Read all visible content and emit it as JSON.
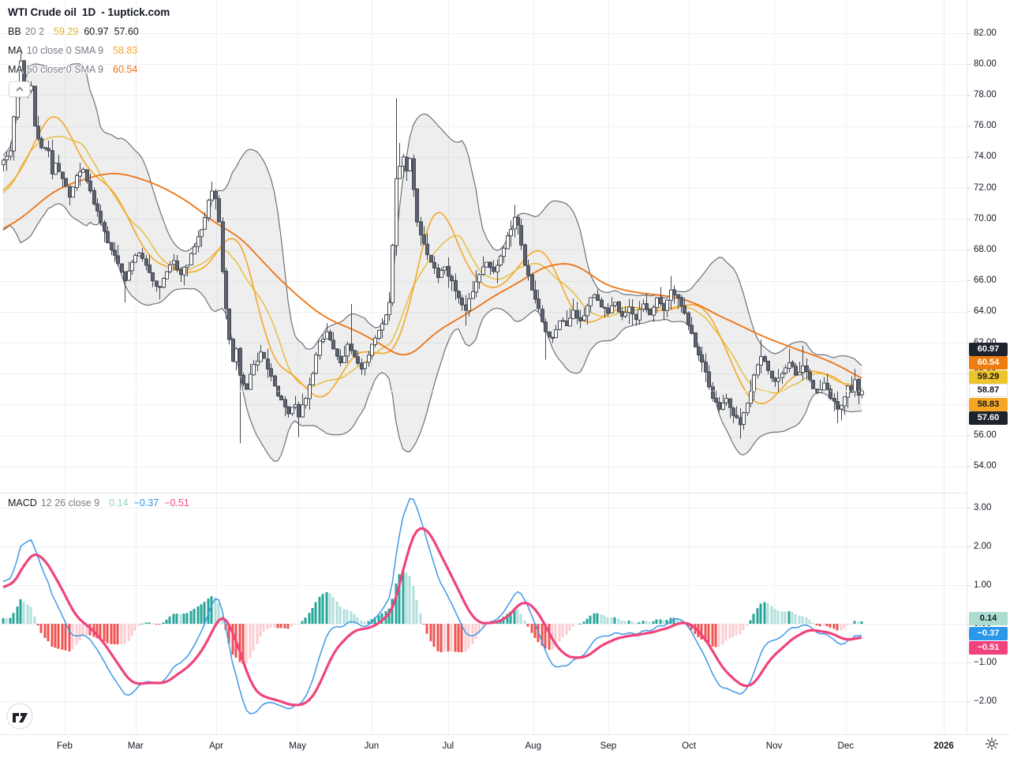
{
  "header": {
    "title_symbol": "WTI Crude oil",
    "title_interval": "1D",
    "title_source": "- 1uptick.com"
  },
  "legend": {
    "bb": {
      "name": "BB",
      "params": "20 2",
      "values": [
        {
          "text": "59.29",
          "color": "#dfb22e"
        },
        {
          "text": "60.97",
          "color": "#131722"
        },
        {
          "text": "57.60",
          "color": "#131722"
        }
      ]
    },
    "ma10": {
      "name": "MA",
      "params": "10 close 0 SMA 9",
      "values": [
        {
          "text": "58.83",
          "color": "#f5a623"
        }
      ]
    },
    "ma50": {
      "name": "MA",
      "params": "50 close 0 SMA 9",
      "values": [
        {
          "text": "60.54",
          "color": "#ef7012"
        }
      ]
    },
    "macd": {
      "name": "MACD",
      "params": "12 26 close 9",
      "values": [
        {
          "text": "0.14",
          "color": "#93d2c5"
        },
        {
          "text": "−0.37",
          "color": "#2a95e8"
        },
        {
          "text": "−0.51",
          "color": "#f5487d"
        }
      ]
    }
  },
  "price_axis": {
    "ticks": [
      {
        "label": "82.00",
        "value": 82
      },
      {
        "label": "80.00",
        "value": 80
      },
      {
        "label": "78.00",
        "value": 78
      },
      {
        "label": "76.00",
        "value": 76
      },
      {
        "label": "74.00",
        "value": 74
      },
      {
        "label": "72.00",
        "value": 72
      },
      {
        "label": "70.00",
        "value": 70
      },
      {
        "label": "68.00",
        "value": 68
      },
      {
        "label": "66.00",
        "value": 66
      },
      {
        "label": "64.00",
        "value": 64
      },
      {
        "label": "62.00",
        "value": 62
      },
      {
        "label": "60.00",
        "value": 60
      },
      {
        "label": "58.00",
        "value": 58
      },
      {
        "label": "56.00",
        "value": 56
      },
      {
        "label": "54.00",
        "value": 54
      }
    ],
    "badges": [
      {
        "label": "60.97",
        "value": 60.97,
        "bg": "#1e222d",
        "fg": "#ffffff"
      },
      {
        "label": "60.54",
        "value": 60.54,
        "bg": "#ef7c0e",
        "fg": "#ffffff"
      },
      {
        "label": "59.29",
        "value": 59.29,
        "bg": "#edc32a",
        "fg": "#131722"
      },
      {
        "label": "58.87",
        "value": 58.87,
        "bg": "#ffffff",
        "fg": "#131722",
        "border": "#e0e3eb"
      },
      {
        "label": "58.83",
        "value": 58.83,
        "bg": "#f5a623",
        "fg": "#131722"
      },
      {
        "label": "57.60",
        "value": 57.6,
        "bg": "#1e222d",
        "fg": "#ffffff"
      }
    ]
  },
  "macd_axis": {
    "ticks": [
      {
        "label": "3.00",
        "value": 3
      },
      {
        "label": "2.00",
        "value": 2
      },
      {
        "label": "1.00",
        "value": 1
      },
      {
        "label": "0.00",
        "value": 0
      },
      {
        "label": "−1.00",
        "value": -1
      },
      {
        "label": "−2.00",
        "value": -2
      }
    ],
    "badges": [
      {
        "label": "0.14",
        "value": 0.14,
        "bg": "#aadcd0",
        "fg": "#131722"
      },
      {
        "label": "−0.37",
        "value": -0.37,
        "bg": "#2b97ea",
        "fg": "#ffffff"
      },
      {
        "label": "−0.51",
        "value": -0.51,
        "bg": "#f0427c",
        "fg": "#ffffff"
      }
    ]
  },
  "chart_data": {
    "type": "candlestick_with_indicators",
    "symbol": "WTI Crude oil",
    "interval": "1D",
    "source": "1uptick.com",
    "last_price": 58.87,
    "price_scale": {
      "visible_min": 52.5,
      "visible_max": 82.2,
      "gridline_step": 2
    },
    "macd_scale": {
      "visible_min": -2.9,
      "visible_max": 3.3,
      "gridline_step": 1
    },
    "indicators": [
      {
        "type": "BollingerBands",
        "length": 20,
        "mult": 2,
        "last_basis": 59.29,
        "last_upper": 60.97,
        "last_lower": 57.6
      },
      {
        "type": "MA",
        "length": 10,
        "source": "close",
        "offset": 0,
        "smoothing": "SMA 9",
        "last": 58.83
      },
      {
        "type": "MA",
        "length": 50,
        "source": "close",
        "offset": 0,
        "smoothing": "SMA 9",
        "last": 60.54
      },
      {
        "type": "MACD",
        "fast": 12,
        "slow": 26,
        "source": "close",
        "signal": 9,
        "last_hist": 0.14,
        "last_macd": -0.37,
        "last_signal": -0.51
      }
    ],
    "months": [
      {
        "label": "Feb",
        "day": 17.7
      },
      {
        "label": "Mar",
        "day": 38.1
      },
      {
        "label": "Apr",
        "day": 61.3
      },
      {
        "label": "May",
        "day": 84.7
      },
      {
        "label": "Jun",
        "day": 106.0
      },
      {
        "label": "Jul",
        "day": 128.0
      },
      {
        "label": "Aug",
        "day": 152.5
      },
      {
        "label": "Sep",
        "day": 174.1
      },
      {
        "label": "Oct",
        "day": 197.3
      },
      {
        "label": "Nov",
        "day": 221.8
      },
      {
        "label": "Dec",
        "day": 242.4
      },
      {
        "label": "2026",
        "day": 270.6,
        "year": true
      }
    ],
    "days_visible": 248,
    "seed": 11,
    "close_anchors": [
      [
        -60,
        66.5
      ],
      [
        -45,
        67.8
      ],
      [
        -30,
        69.0
      ],
      [
        -18,
        70.0
      ],
      [
        -10,
        71.5
      ],
      [
        -5,
        72.5
      ],
      [
        0,
        73.8
      ],
      [
        2,
        74.4
      ],
      [
        3,
        76.6
      ],
      [
        5,
        80.2
      ],
      [
        6,
        78.0
      ],
      [
        8,
        78.6
      ],
      [
        9,
        76.0
      ],
      [
        11,
        74.6
      ],
      [
        13,
        74.4
      ],
      [
        14,
        72.9
      ],
      [
        15,
        73.6
      ],
      [
        17,
        72.6
      ],
      [
        19,
        71.4
      ],
      [
        21,
        72.8
      ],
      [
        23,
        73.2
      ],
      [
        25,
        71.8
      ],
      [
        27,
        70.5
      ],
      [
        29,
        69.2
      ],
      [
        31,
        68.0
      ],
      [
        33,
        67.1
      ],
      [
        35,
        66.0
      ],
      [
        37,
        67.2
      ],
      [
        39,
        67.8
      ],
      [
        41,
        67.0
      ],
      [
        43,
        66.0
      ],
      [
        45,
        65.6
      ],
      [
        47,
        66.6
      ],
      [
        49,
        67.3
      ],
      [
        51,
        66.4
      ],
      [
        53,
        67.0
      ],
      [
        55,
        68.2
      ],
      [
        57,
        69.3
      ],
      [
        59,
        71.2
      ],
      [
        60,
        71.8
      ],
      [
        61,
        71.3
      ],
      [
        62,
        69.8
      ],
      [
        63,
        66.6
      ],
      [
        64,
        64.2
      ],
      [
        65,
        62.2
      ],
      [
        66,
        60.8
      ],
      [
        67,
        61.6
      ],
      [
        68,
        59.9
      ],
      [
        70,
        59.0
      ],
      [
        72,
        60.6
      ],
      [
        74,
        61.4
      ],
      [
        76,
        60.3
      ],
      [
        78,
        59.2
      ],
      [
        80,
        58.3
      ],
      [
        82,
        57.4
      ],
      [
        84,
        58.0
      ],
      [
        85,
        57.2
      ],
      [
        87,
        58.4
      ],
      [
        89,
        60.0
      ],
      [
        91,
        62.1
      ],
      [
        93,
        62.7
      ],
      [
        95,
        61.6
      ],
      [
        97,
        60.7
      ],
      [
        99,
        61.9
      ],
      [
        101,
        61.1
      ],
      [
        103,
        60.3
      ],
      [
        105,
        61.2
      ],
      [
        106,
        61.9
      ],
      [
        108,
        62.8
      ],
      [
        110,
        63.8
      ],
      [
        111,
        64.6
      ],
      [
        112,
        68.3
      ],
      [
        113,
        72.6
      ],
      [
        114,
        73.4
      ],
      [
        115,
        74.0
      ],
      [
        116,
        73.1
      ],
      [
        117,
        73.9
      ],
      [
        118,
        71.9
      ],
      [
        119,
        69.8
      ],
      [
        121,
        68.4
      ],
      [
        123,
        67.2
      ],
      [
        125,
        66.2
      ],
      [
        127,
        66.9
      ],
      [
        129,
        66.0
      ],
      [
        131,
        64.9
      ],
      [
        133,
        64.1
      ],
      [
        135,
        65.3
      ],
      [
        137,
        66.4
      ],
      [
        139,
        67.2
      ],
      [
        141,
        66.6
      ],
      [
        143,
        67.6
      ],
      [
        145,
        68.9
      ],
      [
        147,
        70.1
      ],
      [
        148,
        69.6
      ],
      [
        149,
        68.3
      ],
      [
        150,
        67.0
      ],
      [
        152,
        65.4
      ],
      [
        154,
        64.2
      ],
      [
        156,
        62.7
      ],
      [
        158,
        62.3
      ],
      [
        160,
        63.4
      ],
      [
        162,
        63.1
      ],
      [
        164,
        64.1
      ],
      [
        166,
        63.4
      ],
      [
        168,
        64.4
      ],
      [
        170,
        65.1
      ],
      [
        172,
        64.3
      ],
      [
        174,
        63.9
      ],
      [
        176,
        64.6
      ],
      [
        178,
        63.7
      ],
      [
        180,
        64.3
      ],
      [
        182,
        63.5
      ],
      [
        184,
        64.5
      ],
      [
        186,
        63.8
      ],
      [
        188,
        64.9
      ],
      [
        190,
        64.1
      ],
      [
        192,
        65.4
      ],
      [
        194,
        64.9
      ],
      [
        196,
        63.9
      ],
      [
        198,
        62.6
      ],
      [
        200,
        61.2
      ],
      [
        202,
        60.1
      ],
      [
        204,
        58.4
      ],
      [
        206,
        57.7
      ],
      [
        208,
        58.4
      ],
      [
        210,
        57.3
      ],
      [
        212,
        56.7
      ],
      [
        214,
        58.1
      ],
      [
        216,
        59.9
      ],
      [
        218,
        61.1
      ],
      [
        220,
        60.2
      ],
      [
        222,
        59.5
      ],
      [
        224,
        60.0
      ],
      [
        226,
        60.7
      ],
      [
        228,
        59.9
      ],
      [
        230,
        60.5
      ],
      [
        232,
        59.6
      ],
      [
        234,
        58.8
      ],
      [
        236,
        59.4
      ],
      [
        238,
        58.4
      ],
      [
        240,
        57.7
      ],
      [
        242,
        58.5
      ],
      [
        243,
        59.2
      ],
      [
        244,
        58.8
      ],
      [
        245,
        59.6
      ],
      [
        246,
        58.6
      ],
      [
        247,
        58.87
      ]
    ],
    "wick_overrides": {
      "5": {
        "high": 80.9
      },
      "35": {
        "low": 64.6
      },
      "45": {
        "low": 64.8
      },
      "60": {
        "high": 72.4
      },
      "68": {
        "low": 55.5
      },
      "85": {
        "low": 55.9
      },
      "100": {
        "high": 64.5
      },
      "113": {
        "high": 77.8
      },
      "114": {
        "high": 74.9
      },
      "133": {
        "low": 63.1
      },
      "147": {
        "high": 70.9
      },
      "156": {
        "low": 60.9
      },
      "192": {
        "high": 66.3
      },
      "212": {
        "low": 55.8
      },
      "218": {
        "high": 62.2
      },
      "226": {
        "high": 61.6
      },
      "230": {
        "high": 61.8
      },
      "240": {
        "low": 56.8
      },
      "245": {
        "high": 60.3
      }
    },
    "style": {
      "candle_up_fill": "#ffffff",
      "candle_down_fill": "#5d6370",
      "candle_border": "#42474f",
      "wick": "#42474f",
      "bb_fill": "rgba(120,124,135,0.13)",
      "bb_line": "rgba(74,79,90,0.8)",
      "bb_basis": "#e6c14a",
      "ma10": "#f5a623",
      "ma50": "#ee7211",
      "macd_line": "#3f98e8",
      "signal_line": "#f0437c",
      "hist_rise_above": "#26a69a",
      "hist_fall_above": "#b2dfdb",
      "hist_fall_below": "#ef5350",
      "hist_rise_below": "#fbcdd2",
      "grid": "#eef0f3",
      "last_price_line": "rgba(255,255,255,0.95)"
    }
  }
}
